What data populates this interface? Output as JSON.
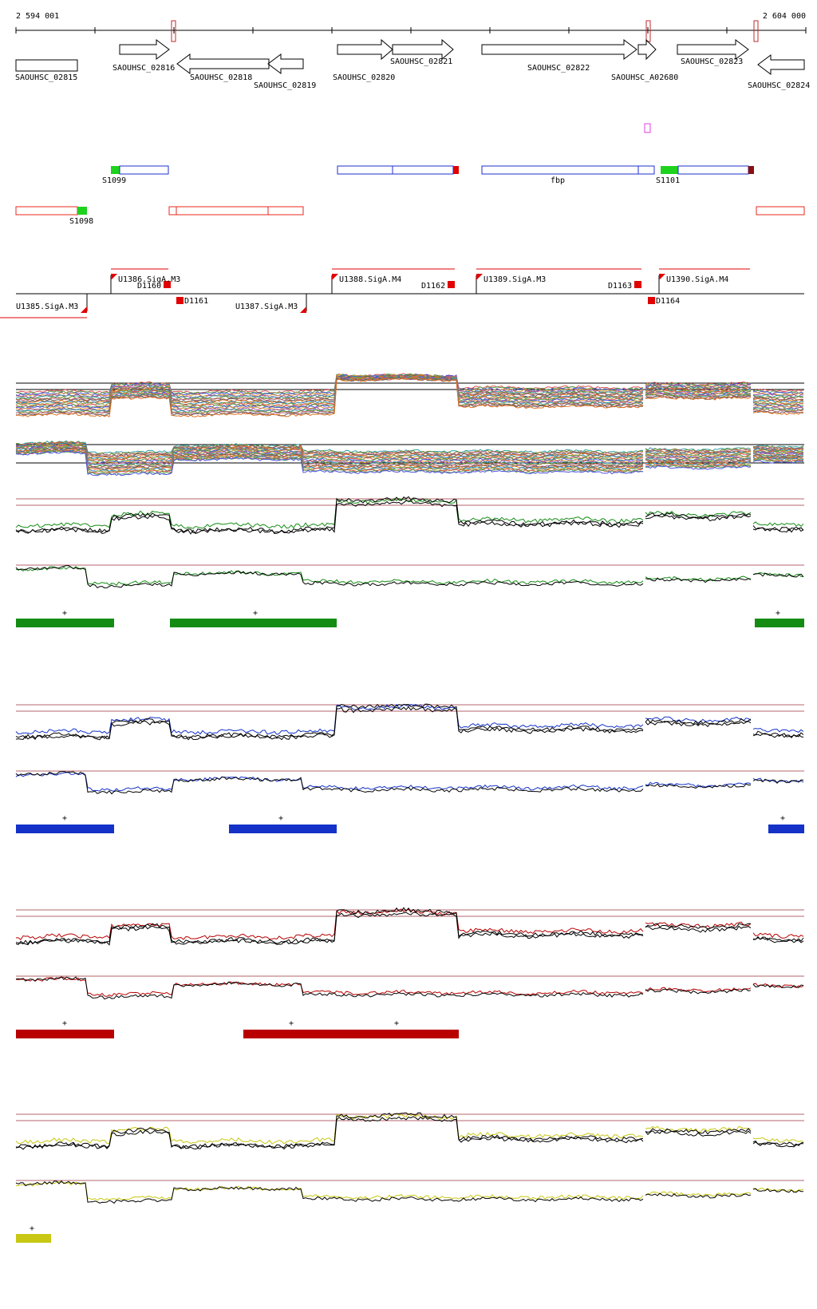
{
  "coordinates": {
    "start": "2 594 001",
    "end": "2 604 000"
  },
  "genes": [
    {
      "label": "SAOUHSC_02815"
    },
    {
      "label": "SAOUHSC_02816"
    },
    {
      "label": "SAOUHSC_02818"
    },
    {
      "label": "SAOUHSC_02819"
    },
    {
      "label": "SAOUHSC_02820"
    },
    {
      "label": "SAOUHSC_02821"
    },
    {
      "label": "SAOUHSC_02822"
    },
    {
      "label": "SAOUHSC_A02680"
    },
    {
      "label": "SAOUHSC_02823"
    },
    {
      "label": "SAOUHSC_02824"
    }
  ],
  "transcripts": [
    {
      "label": "S1099"
    },
    {
      "label": "fbp"
    },
    {
      "label": "S1101"
    },
    {
      "label": "S1098"
    }
  ],
  "promoters": [
    {
      "label": "U1386.SigA.M3"
    },
    {
      "label": "U1388.SigA.M4"
    },
    {
      "label": "U1389.SigA.M3"
    },
    {
      "label": "U1390.SigA.M4"
    },
    {
      "label": "U1385.SigA.M3"
    },
    {
      "label": "U1387.SigA.M3"
    }
  ],
  "terminators": [
    {
      "label": "D1160"
    },
    {
      "label": "D1161"
    },
    {
      "label": "D1162"
    },
    {
      "label": "D1163"
    },
    {
      "label": "D1164"
    }
  ],
  "segment_marks": {
    "plus": "+"
  },
  "colors": {
    "gene_outline": "#000000",
    "reverse_transcript": "#e8281e",
    "forward_transcript": "#1e2fd0",
    "start_box": "#1ed21e",
    "promoter_red": "#e00000",
    "green_track": "#148c14",
    "blue_track": "#1432c8",
    "red_track": "#b80000",
    "yellow_track": "#c8c814",
    "baseline": "#b4646e"
  }
}
